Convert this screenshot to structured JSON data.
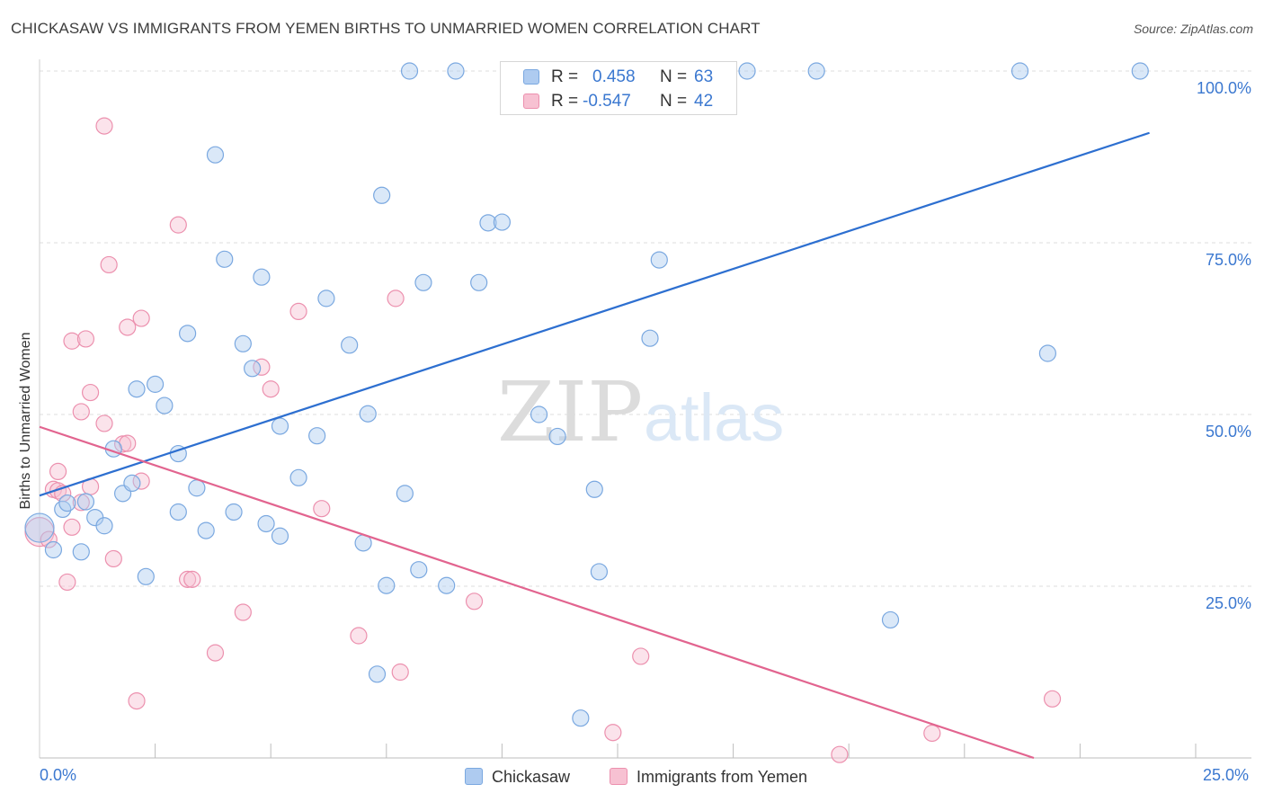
{
  "chart_data": {
    "type": "scatter",
    "title": "CHICKASAW VS IMMIGRANTS FROM YEMEN BIRTHS TO UNMARRIED WOMEN CORRELATION CHART",
    "source": "Source: ZipAtlas.com",
    "xlabel": "",
    "ylabel": "Births to Unmarried Women",
    "xlim": [
      0,
      25
    ],
    "ylim": [
      0,
      100
    ],
    "x_tick_labels": [
      "0.0%",
      "25.0%"
    ],
    "y_ticks": [
      25,
      50,
      75,
      100
    ],
    "y_tick_labels": [
      "25.0%",
      "50.0%",
      "75.0%",
      "100.0%"
    ],
    "grid": true,
    "watermark": {
      "zip": "ZIP",
      "atlas": "atlas"
    },
    "colors": {
      "blue_fill": "#aecbf0",
      "blue_stroke": "#7aa8e0",
      "blue_line": "#2d6fd0",
      "pink_fill": "#f7c1d2",
      "pink_stroke": "#ec90ae",
      "pink_line": "#e2648f",
      "axis_text": "#3b78d0"
    },
    "legend_stats": [
      {
        "series": "Chickasaw",
        "r_label": "R =",
        "r_value": "0.458",
        "n_label": "N =",
        "n_value": "63"
      },
      {
        "series": "Immigrants from Yemen",
        "r_label": "R =",
        "r_value": "-0.547",
        "n_label": "N =",
        "n_value": "42"
      }
    ],
    "series": [
      {
        "name": "Chickasaw",
        "color": "#aecbf0",
        "trend": {
          "x": [
            0,
            24
          ],
          "y": [
            38.2,
            91.0
          ]
        },
        "points": [
          {
            "x": 0.0,
            "y": 33.5,
            "size": "large"
          },
          {
            "x": 0.3,
            "y": 30.3
          },
          {
            "x": 0.5,
            "y": 36.2
          },
          {
            "x": 0.6,
            "y": 37.1
          },
          {
            "x": 1.0,
            "y": 37.3
          },
          {
            "x": 0.9,
            "y": 30.0
          },
          {
            "x": 1.2,
            "y": 35.0
          },
          {
            "x": 1.4,
            "y": 33.8
          },
          {
            "x": 1.6,
            "y": 45.0
          },
          {
            "x": 1.8,
            "y": 38.5
          },
          {
            "x": 2.0,
            "y": 40.0
          },
          {
            "x": 2.1,
            "y": 53.7
          },
          {
            "x": 2.3,
            "y": 26.4
          },
          {
            "x": 2.5,
            "y": 54.4
          },
          {
            "x": 2.7,
            "y": 51.3
          },
          {
            "x": 3.0,
            "y": 35.8
          },
          {
            "x": 3.0,
            "y": 44.3
          },
          {
            "x": 3.2,
            "y": 61.8
          },
          {
            "x": 3.4,
            "y": 39.3
          },
          {
            "x": 3.6,
            "y": 33.1
          },
          {
            "x": 3.8,
            "y": 87.8
          },
          {
            "x": 4.0,
            "y": 72.6
          },
          {
            "x": 4.2,
            "y": 35.8
          },
          {
            "x": 4.4,
            "y": 60.3
          },
          {
            "x": 4.6,
            "y": 56.7
          },
          {
            "x": 4.8,
            "y": 70.0
          },
          {
            "x": 4.9,
            "y": 34.1
          },
          {
            "x": 5.2,
            "y": 32.3
          },
          {
            "x": 5.2,
            "y": 48.3
          },
          {
            "x": 5.6,
            "y": 40.8
          },
          {
            "x": 6.0,
            "y": 46.9
          },
          {
            "x": 6.2,
            "y": 66.9
          },
          {
            "x": 6.7,
            "y": 60.1
          },
          {
            "x": 7.0,
            "y": 31.3
          },
          {
            "x": 7.1,
            "y": 50.1
          },
          {
            "x": 7.3,
            "y": 12.2
          },
          {
            "x": 7.4,
            "y": 81.9
          },
          {
            "x": 7.5,
            "y": 25.1
          },
          {
            "x": 7.9,
            "y": 38.5
          },
          {
            "x": 8.0,
            "y": 100.0
          },
          {
            "x": 8.2,
            "y": 27.4
          },
          {
            "x": 8.3,
            "y": 69.2
          },
          {
            "x": 8.8,
            "y": 25.1
          },
          {
            "x": 9.0,
            "y": 100.0
          },
          {
            "x": 9.5,
            "y": 69.2
          },
          {
            "x": 9.7,
            "y": 77.9
          },
          {
            "x": 10.0,
            "y": 78.0
          },
          {
            "x": 10.8,
            "y": 50.0
          },
          {
            "x": 11.2,
            "y": 46.8
          },
          {
            "x": 11.7,
            "y": 5.8
          },
          {
            "x": 11.8,
            "y": 100.0
          },
          {
            "x": 12.0,
            "y": 39.1
          },
          {
            "x": 12.1,
            "y": 27.1
          },
          {
            "x": 13.1,
            "y": 100.0
          },
          {
            "x": 13.2,
            "y": 61.1
          },
          {
            "x": 13.4,
            "y": 72.5
          },
          {
            "x": 13.6,
            "y": 100.0
          },
          {
            "x": 15.3,
            "y": 100.0
          },
          {
            "x": 16.8,
            "y": 100.0
          },
          {
            "x": 18.4,
            "y": 20.1
          },
          {
            "x": 21.2,
            "y": 100.0
          },
          {
            "x": 21.8,
            "y": 58.9
          },
          {
            "x": 23.8,
            "y": 100.0
          }
        ]
      },
      {
        "name": "Immigrants from Yemen",
        "color": "#f7c1d2",
        "trend": {
          "x": [
            0,
            21.5
          ],
          "y": [
            48.2,
            0.0
          ]
        },
        "points": [
          {
            "x": 0.0,
            "y": 32.9,
            "size": "large"
          },
          {
            "x": 0.2,
            "y": 31.8
          },
          {
            "x": 0.3,
            "y": 39.1
          },
          {
            "x": 0.4,
            "y": 38.9
          },
          {
            "x": 0.4,
            "y": 41.7
          },
          {
            "x": 0.5,
            "y": 38.5
          },
          {
            "x": 0.6,
            "y": 25.6
          },
          {
            "x": 0.7,
            "y": 33.6
          },
          {
            "x": 0.7,
            "y": 60.7
          },
          {
            "x": 0.9,
            "y": 37.2
          },
          {
            "x": 0.9,
            "y": 50.4
          },
          {
            "x": 1.0,
            "y": 61.0
          },
          {
            "x": 1.1,
            "y": 53.2
          },
          {
            "x": 1.1,
            "y": 39.5
          },
          {
            "x": 1.4,
            "y": 48.7
          },
          {
            "x": 1.4,
            "y": 92.0
          },
          {
            "x": 1.5,
            "y": 71.8
          },
          {
            "x": 1.6,
            "y": 29.0
          },
          {
            "x": 1.8,
            "y": 45.7
          },
          {
            "x": 1.9,
            "y": 45.8
          },
          {
            "x": 1.9,
            "y": 62.7
          },
          {
            "x": 2.1,
            "y": 8.3
          },
          {
            "x": 2.2,
            "y": 64.0
          },
          {
            "x": 2.2,
            "y": 40.3
          },
          {
            "x": 3.0,
            "y": 77.6
          },
          {
            "x": 3.2,
            "y": 26.0
          },
          {
            "x": 3.3,
            "y": 26.0
          },
          {
            "x": 3.8,
            "y": 15.3
          },
          {
            "x": 4.4,
            "y": 21.2
          },
          {
            "x": 4.8,
            "y": 56.9
          },
          {
            "x": 5.0,
            "y": 53.7
          },
          {
            "x": 5.6,
            "y": 65.0
          },
          {
            "x": 6.1,
            "y": 36.3
          },
          {
            "x": 6.9,
            "y": 17.8
          },
          {
            "x": 7.7,
            "y": 66.9
          },
          {
            "x": 7.8,
            "y": 12.5
          },
          {
            "x": 9.4,
            "y": 22.8
          },
          {
            "x": 12.4,
            "y": 3.7
          },
          {
            "x": 13.0,
            "y": 14.8
          },
          {
            "x": 17.3,
            "y": 0.5
          },
          {
            "x": 19.3,
            "y": 3.6
          },
          {
            "x": 21.9,
            "y": 8.6
          }
        ]
      }
    ]
  }
}
